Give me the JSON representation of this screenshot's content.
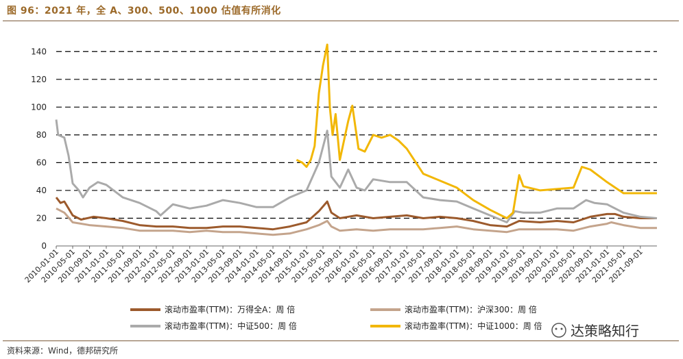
{
  "figure": {
    "title": "图 96：2021 年，全 A、300、500、1000 估值有所消化",
    "source": "资料来源：Wind，德邦研究所",
    "watermark": "达策略知行"
  },
  "chart_data": {
    "type": "line",
    "ylim": [
      0,
      150
    ],
    "yticks": [
      0,
      20,
      40,
      60,
      80,
      100,
      120,
      140
    ],
    "xlim": [
      "2010-01-01",
      "2021-12-31"
    ],
    "xticks": [
      "2010-01-01",
      "2010-05-01",
      "2010-09-01",
      "2011-01-01",
      "2011-05-01",
      "2011-09-01",
      "2012-01-01",
      "2012-05-01",
      "2012-09-01",
      "2013-01-01",
      "2013-05-01",
      "2013-09-01",
      "2014-01-01",
      "2014-05-01",
      "2014-09-01",
      "2015-01-01",
      "2015-05-01",
      "2015-09-01",
      "2016-01-01",
      "2016-05-01",
      "2016-09-01",
      "2017-01-01",
      "2017-05-01",
      "2017-09-01",
      "2018-01-01",
      "2018-05-01",
      "2018-09-01",
      "2019-01-01",
      "2019-05-01",
      "2019-09-01",
      "2020-01-01",
      "2020-05-01",
      "2020-09-01",
      "2021-01-01",
      "2021-05-01",
      "2021-09-01"
    ],
    "grid": "horizontal dashed",
    "legend_position": "bottom",
    "series": [
      {
        "name": "滚动市盈率(TTM)：万得全A：周 倍",
        "color": "#9c5a2c",
        "points": [
          [
            "2010-01-01",
            35
          ],
          [
            "2010-02-01",
            31
          ],
          [
            "2010-03-01",
            32
          ],
          [
            "2010-04-01",
            27
          ],
          [
            "2010-05-01",
            22
          ],
          [
            "2010-07-01",
            19
          ],
          [
            "2010-10-01",
            21
          ],
          [
            "2011-01-01",
            20
          ],
          [
            "2011-05-01",
            18
          ],
          [
            "2011-09-01",
            15
          ],
          [
            "2012-01-01",
            14
          ],
          [
            "2012-05-01",
            14
          ],
          [
            "2012-09-01",
            13
          ],
          [
            "2013-01-01",
            13
          ],
          [
            "2013-05-01",
            14
          ],
          [
            "2013-09-01",
            14
          ],
          [
            "2014-01-01",
            13
          ],
          [
            "2014-05-01",
            12
          ],
          [
            "2014-09-01",
            14
          ],
          [
            "2015-01-01",
            17
          ],
          [
            "2015-04-01",
            25
          ],
          [
            "2015-06-01",
            32
          ],
          [
            "2015-07-01",
            24
          ],
          [
            "2015-09-01",
            20
          ],
          [
            "2016-01-01",
            22
          ],
          [
            "2016-05-01",
            20
          ],
          [
            "2016-09-01",
            21
          ],
          [
            "2017-01-01",
            22
          ],
          [
            "2017-05-01",
            20
          ],
          [
            "2017-09-01",
            21
          ],
          [
            "2018-01-01",
            20
          ],
          [
            "2018-05-01",
            18
          ],
          [
            "2018-09-01",
            15
          ],
          [
            "2019-01-01",
            14
          ],
          [
            "2019-04-01",
            18
          ],
          [
            "2019-09-01",
            17
          ],
          [
            "2020-01-01",
            18
          ],
          [
            "2020-05-01",
            17
          ],
          [
            "2020-09-01",
            21
          ],
          [
            "2021-01-01",
            23
          ],
          [
            "2021-03-01",
            23
          ],
          [
            "2021-05-01",
            21
          ],
          [
            "2021-09-01",
            20
          ],
          [
            "2021-12-31",
            20
          ]
        ]
      },
      {
        "name": "滚动市盈率(TTM)：沪深300：周 倍",
        "color": "#c4a48c",
        "points": [
          [
            "2010-01-01",
            27
          ],
          [
            "2010-03-01",
            24
          ],
          [
            "2010-05-01",
            17
          ],
          [
            "2010-09-01",
            15
          ],
          [
            "2011-01-01",
            14
          ],
          [
            "2011-05-01",
            13
          ],
          [
            "2011-09-01",
            11
          ],
          [
            "2012-01-01",
            11
          ],
          [
            "2012-05-01",
            11
          ],
          [
            "2012-09-01",
            10
          ],
          [
            "2013-01-01",
            11
          ],
          [
            "2013-05-01",
            10
          ],
          [
            "2013-09-01",
            10
          ],
          [
            "2014-01-01",
            9
          ],
          [
            "2014-05-01",
            8
          ],
          [
            "2014-09-01",
            9
          ],
          [
            "2015-01-01",
            12
          ],
          [
            "2015-04-01",
            15
          ],
          [
            "2015-06-01",
            18
          ],
          [
            "2015-07-01",
            14
          ],
          [
            "2015-09-01",
            11
          ],
          [
            "2016-01-01",
            12
          ],
          [
            "2016-05-01",
            11
          ],
          [
            "2016-09-01",
            12
          ],
          [
            "2017-01-01",
            12
          ],
          [
            "2017-05-01",
            12
          ],
          [
            "2017-09-01",
            13
          ],
          [
            "2018-01-01",
            14
          ],
          [
            "2018-05-01",
            12
          ],
          [
            "2018-09-01",
            11
          ],
          [
            "2019-01-01",
            10
          ],
          [
            "2019-04-01",
            12
          ],
          [
            "2019-09-01",
            12
          ],
          [
            "2020-01-01",
            12
          ],
          [
            "2020-05-01",
            11
          ],
          [
            "2020-09-01",
            14
          ],
          [
            "2021-01-01",
            16
          ],
          [
            "2021-02-01",
            17
          ],
          [
            "2021-05-01",
            15
          ],
          [
            "2021-09-01",
            13
          ],
          [
            "2021-12-31",
            13
          ]
        ]
      },
      {
        "name": "滚动市盈率(TTM)：中证500：周 倍",
        "color": "#aaaaaa",
        "points": [
          [
            "2010-01-01",
            91
          ],
          [
            "2010-01-15",
            80
          ],
          [
            "2010-03-01",
            78
          ],
          [
            "2010-04-01",
            65
          ],
          [
            "2010-05-01",
            45
          ],
          [
            "2010-06-15",
            40
          ],
          [
            "2010-07-15",
            35
          ],
          [
            "2010-09-01",
            42
          ],
          [
            "2010-11-01",
            46
          ],
          [
            "2011-01-01",
            44
          ],
          [
            "2011-05-01",
            35
          ],
          [
            "2011-09-01",
            31
          ],
          [
            "2012-01-01",
            25
          ],
          [
            "2012-02-01",
            22
          ],
          [
            "2012-05-01",
            30
          ],
          [
            "2012-09-01",
            27
          ],
          [
            "2013-01-01",
            29
          ],
          [
            "2013-05-01",
            33
          ],
          [
            "2013-09-01",
            31
          ],
          [
            "2014-01-01",
            28
          ],
          [
            "2014-05-01",
            28
          ],
          [
            "2014-09-01",
            35
          ],
          [
            "2015-01-01",
            40
          ],
          [
            "2015-04-01",
            60
          ],
          [
            "2015-06-01",
            83
          ],
          [
            "2015-07-01",
            50
          ],
          [
            "2015-09-01",
            42
          ],
          [
            "2015-11-01",
            55
          ],
          [
            "2016-01-01",
            42
          ],
          [
            "2016-03-01",
            40
          ],
          [
            "2016-05-01",
            48
          ],
          [
            "2016-09-01",
            46
          ],
          [
            "2017-01-01",
            46
          ],
          [
            "2017-05-01",
            35
          ],
          [
            "2017-09-01",
            33
          ],
          [
            "2018-01-01",
            32
          ],
          [
            "2018-05-01",
            27
          ],
          [
            "2018-09-01",
            22
          ],
          [
            "2019-01-01",
            17
          ],
          [
            "2019-03-01",
            25
          ],
          [
            "2019-05-01",
            24
          ],
          [
            "2019-09-01",
            24
          ],
          [
            "2020-01-01",
            27
          ],
          [
            "2020-05-01",
            27
          ],
          [
            "2020-08-01",
            33
          ],
          [
            "2020-10-01",
            31
          ],
          [
            "2021-01-01",
            30
          ],
          [
            "2021-05-01",
            24
          ],
          [
            "2021-09-01",
            21
          ],
          [
            "2021-12-31",
            20
          ]
        ]
      },
      {
        "name": "滚动市盈率(TTM)：中证1000：周 倍",
        "color": "#f2b705",
        "points": [
          [
            "2014-10-20",
            62
          ],
          [
            "2014-12-01",
            60
          ],
          [
            "2015-01-01",
            57
          ],
          [
            "2015-02-01",
            62
          ],
          [
            "2015-03-01",
            72
          ],
          [
            "2015-04-01",
            110
          ],
          [
            "2015-05-01",
            130
          ],
          [
            "2015-06-01",
            145
          ],
          [
            "2015-06-20",
            100
          ],
          [
            "2015-07-10",
            80
          ],
          [
            "2015-08-01",
            95
          ],
          [
            "2015-09-01",
            62
          ],
          [
            "2015-11-01",
            90
          ],
          [
            "2015-12-01",
            101
          ],
          [
            "2016-01-15",
            70
          ],
          [
            "2016-03-01",
            68
          ],
          [
            "2016-05-01",
            80
          ],
          [
            "2016-07-01",
            78
          ],
          [
            "2016-09-01",
            80
          ],
          [
            "2016-11-01",
            76
          ],
          [
            "2017-01-01",
            70
          ],
          [
            "2017-05-01",
            52
          ],
          [
            "2017-09-01",
            47
          ],
          [
            "2018-01-01",
            42
          ],
          [
            "2018-05-01",
            33
          ],
          [
            "2018-09-01",
            26
          ],
          [
            "2019-01-01",
            20
          ],
          [
            "2019-02-15",
            24
          ],
          [
            "2019-04-01",
            51
          ],
          [
            "2019-05-01",
            43
          ],
          [
            "2019-09-01",
            40
          ],
          [
            "2020-01-01",
            41
          ],
          [
            "2020-05-01",
            42
          ],
          [
            "2020-07-01",
            57
          ],
          [
            "2020-09-01",
            55
          ],
          [
            "2021-01-01",
            46
          ],
          [
            "2021-05-01",
            38
          ],
          [
            "2021-09-01",
            38
          ],
          [
            "2021-12-31",
            38
          ]
        ]
      }
    ]
  }
}
